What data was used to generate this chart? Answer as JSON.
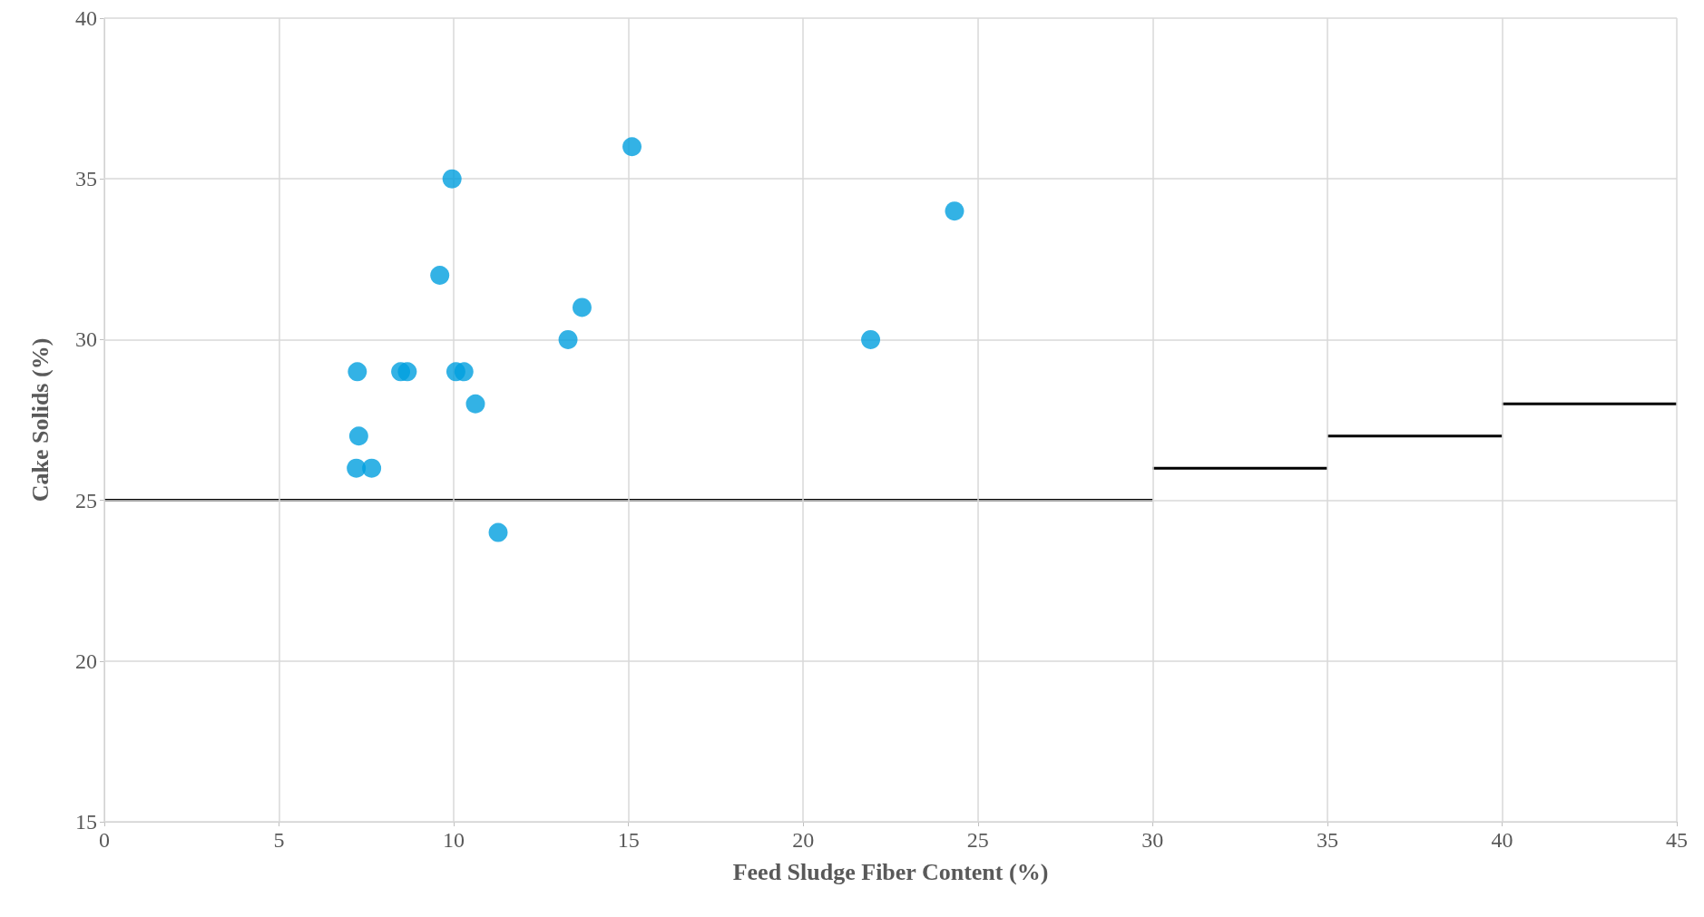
{
  "chart_data": {
    "type": "scatter",
    "xlabel": "Feed Sludge Fiber Content (%)",
    "ylabel": "Cake Solids (%)",
    "xlim": [
      0,
      45
    ],
    "xticks": [
      0,
      5,
      10,
      15,
      20,
      25,
      30,
      35,
      40,
      45
    ],
    "ylim": [
      15,
      40
    ],
    "yticks": [
      15,
      20,
      25,
      30,
      35,
      40
    ],
    "grid": true,
    "marker": "circle",
    "series": [
      {
        "color": "#009fdf",
        "x": [
          7.24,
          7.28,
          7.21,
          7.65,
          8.48,
          8.67,
          9.6,
          9.95,
          10.06,
          10.29,
          10.62,
          11.27,
          13.27,
          13.67,
          15.1,
          21.93,
          24.33
        ],
        "values": [
          29,
          27,
          26,
          26,
          29,
          29,
          32,
          35,
          29,
          29,
          28,
          24,
          30,
          31,
          36,
          30,
          34
        ]
      },
      {
        "type": "line",
        "color": "#000000",
        "marker": "none",
        "line_style": "solid",
        "x": [
          0,
          30
        ],
        "values": [
          25,
          25
        ]
      },
      {
        "type": "line",
        "color": "#000000",
        "marker": "none",
        "line_style": "solid",
        "x": [
          30,
          35
        ],
        "values": [
          26,
          26
        ]
      },
      {
        "type": "line",
        "color": "#000000",
        "marker": "none",
        "line_style": "solid",
        "x": [
          35,
          40
        ],
        "values": [
          27,
          27
        ]
      },
      {
        "type": "line",
        "color": "#000000",
        "marker": "none",
        "line_style": "solid",
        "x": [
          40,
          45
        ],
        "values": [
          28,
          28
        ]
      }
    ]
  }
}
